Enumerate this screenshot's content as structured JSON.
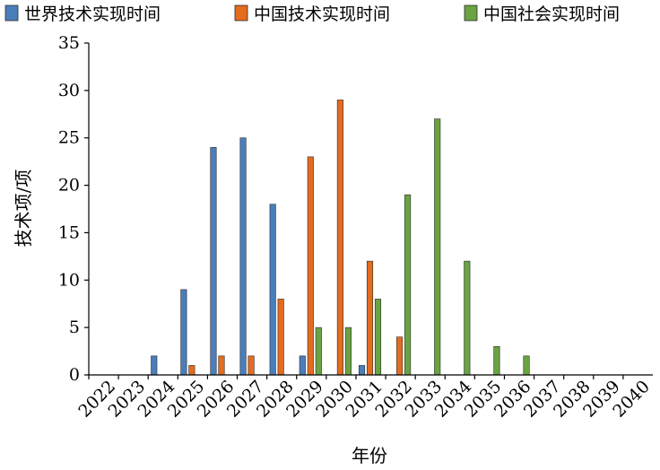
{
  "chart_data": {
    "type": "bar",
    "xlabel": "年份",
    "ylabel": "技术项/项",
    "ylim": [
      0,
      35
    ],
    "yticks": [
      0,
      5,
      10,
      15,
      20,
      25,
      30,
      35
    ],
    "grid": false,
    "legend_position": "top",
    "categories": [
      "2022",
      "2023",
      "2024",
      "2025",
      "2026",
      "2027",
      "2028",
      "2029",
      "2030",
      "2031",
      "2032",
      "2033",
      "2034",
      "2035",
      "2036",
      "2037",
      "2038",
      "2039",
      "2040"
    ],
    "series": [
      {
        "name": "世界技术实现时间",
        "color": "#4a7ebb",
        "values": [
          0,
          0,
          2,
          9,
          24,
          25,
          18,
          2,
          0,
          1,
          0,
          0,
          0,
          0,
          0,
          0,
          0,
          0,
          0
        ]
      },
      {
        "name": "中国技术实现时间",
        "color": "#e46c1f",
        "values": [
          0,
          0,
          0,
          1,
          2,
          2,
          8,
          23,
          29,
          12,
          4,
          0,
          0,
          0,
          0,
          0,
          0,
          0,
          0
        ]
      },
      {
        "name": "中国社会实现时间",
        "color": "#6aa342",
        "values": [
          0,
          0,
          0,
          0,
          0,
          0,
          0,
          5,
          5,
          8,
          19,
          27,
          12,
          3,
          2,
          0,
          0,
          0,
          0
        ]
      }
    ]
  }
}
